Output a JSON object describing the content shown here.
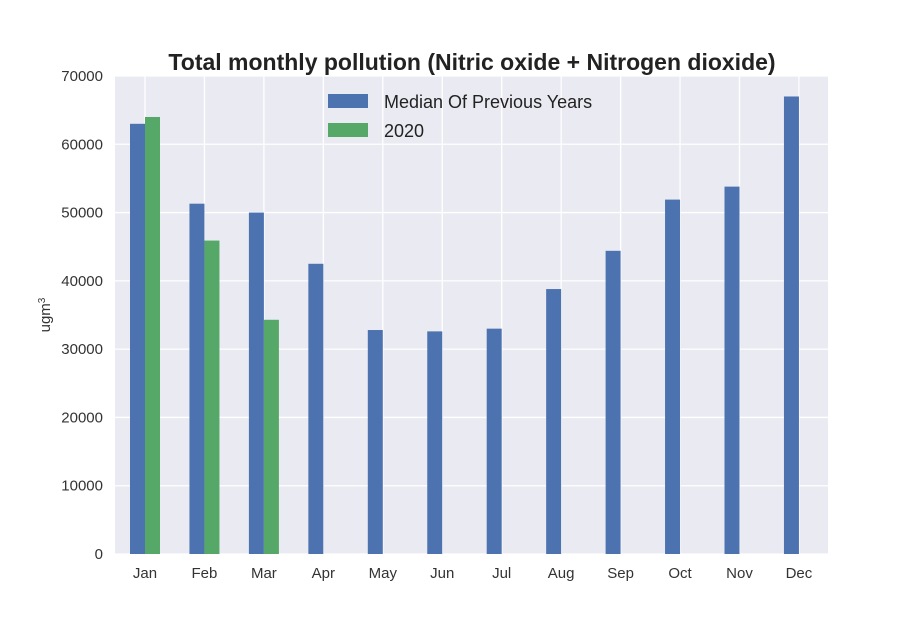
{
  "chart_data": {
    "type": "bar",
    "title": "Total monthly pollution (Nitric oxide + Nitrogen dioxide)",
    "xlabel": "",
    "ylabel": "ugm",
    "ylabel_superscript": "3",
    "categories": [
      "Jan",
      "Feb",
      "Mar",
      "Apr",
      "May",
      "Jun",
      "Jul",
      "Aug",
      "Sep",
      "Oct",
      "Nov",
      "Dec"
    ],
    "series": [
      {
        "name": "Median Of Previous Years",
        "color": "#4c72b0",
        "values": [
          63000,
          51300,
          50000,
          42500,
          32800,
          32600,
          33000,
          38800,
          44400,
          51900,
          53800,
          67000
        ]
      },
      {
        "name": "2020",
        "color": "#55a868",
        "values": [
          64000,
          45900,
          34300,
          null,
          null,
          null,
          null,
          null,
          null,
          null,
          null,
          null
        ]
      }
    ],
    "ylim": [
      0,
      70000
    ],
    "yticks": [
      0,
      10000,
      20000,
      30000,
      40000,
      50000,
      60000,
      70000
    ],
    "grid": true,
    "legend_position": "top-center",
    "background": "#eaeaf2"
  }
}
